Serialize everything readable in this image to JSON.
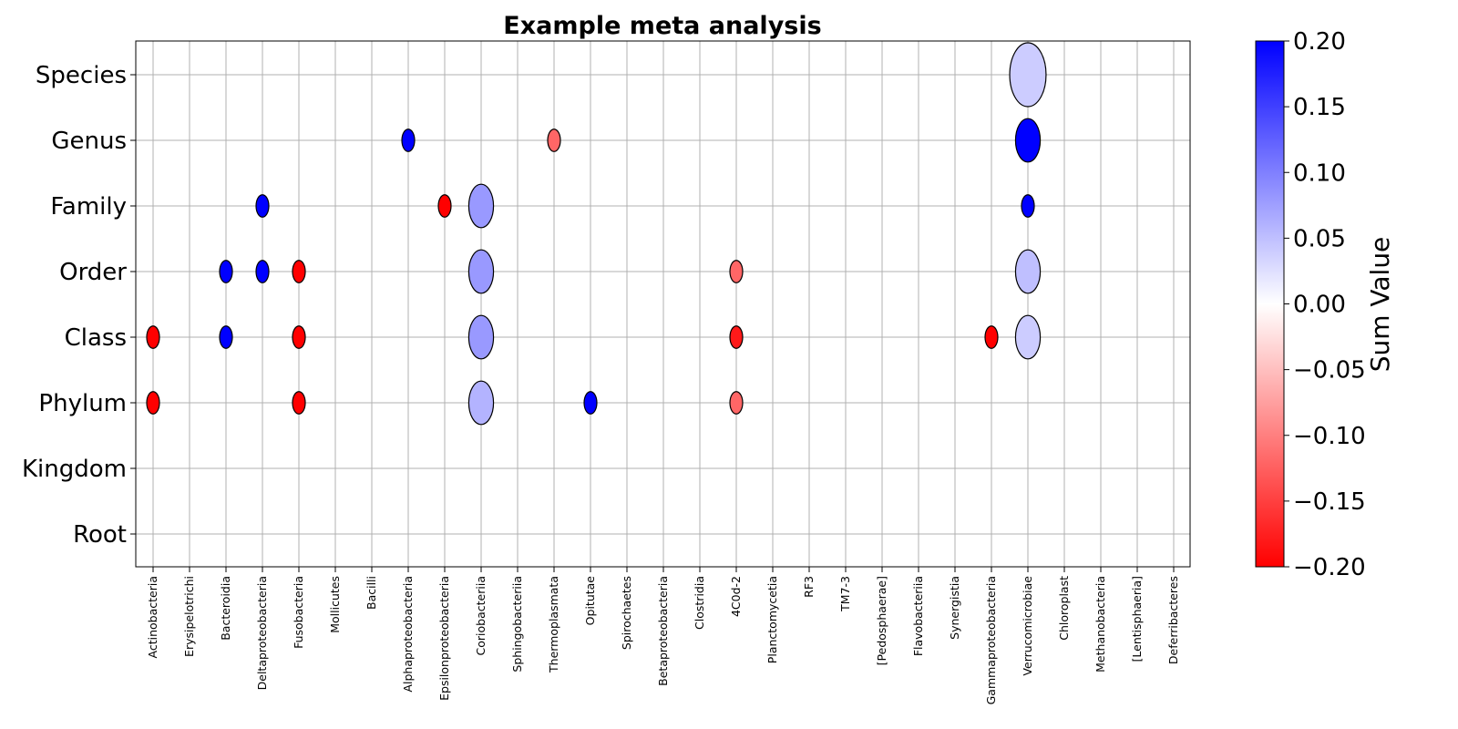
{
  "chart_data": {
    "type": "scatter",
    "title": "Example meta analysis",
    "x_categories": [
      "Actinobacteria",
      "Erysipelotrichi",
      "Bacteroidia",
      "Deltaproteobacteria",
      "Fusobacteria",
      "Mollicutes",
      "Bacilli",
      "Alphaproteobacteria",
      "Epsilonproteobacteria",
      "Coriobacteriia",
      "Sphingobacteriia",
      "Thermoplasmata",
      "Opitutae",
      "Spirochaetes",
      "Betaproteobacteria",
      "Clostridia",
      "4C0d-2",
      "Planctomycetia",
      "RF3",
      "TM7-3",
      "[Pedosphaerae]",
      "Flavobacteriia",
      "Synergistia",
      "Gammaproteobacteria",
      "Verrucomicrobiae",
      "Chloroplast",
      "Methanobacteria",
      "[Lentisphaeria]",
      "Deferribacteres"
    ],
    "y_categories": [
      "Root",
      "Kingdom",
      "Phylum",
      "Class",
      "Order",
      "Family",
      "Genus",
      "Species"
    ],
    "grid": true,
    "colorbar": {
      "label": "Sum Value",
      "range": [
        -0.2,
        0.2
      ],
      "ticks": [
        "0.20",
        "0.15",
        "0.10",
        "0.05",
        "0.00",
        "−0.05",
        "−0.10",
        "−0.15",
        "−0.20"
      ],
      "colormap": "bwr_reversed",
      "low_color": "#ff0000",
      "mid_color": "#ffffff",
      "high_color": "#0000ff"
    },
    "points": [
      {
        "x": "Verrucomicrobiae",
        "y": "Species",
        "value": 0.04,
        "size": 1.0
      },
      {
        "x": "Alphaproteobacteria",
        "y": "Genus",
        "value": 0.2,
        "size": 0.35
      },
      {
        "x": "Thermoplasmata",
        "y": "Genus",
        "value": -0.12,
        "size": 0.35
      },
      {
        "x": "Verrucomicrobiae",
        "y": "Genus",
        "value": 0.2,
        "size": 0.68
      },
      {
        "x": "Deltaproteobacteria",
        "y": "Family",
        "value": 0.2,
        "size": 0.35
      },
      {
        "x": "Epsilonproteobacteria",
        "y": "Family",
        "value": -0.2,
        "size": 0.35
      },
      {
        "x": "Coriobacteriia",
        "y": "Family",
        "value": 0.08,
        "size": 0.68
      },
      {
        "x": "Verrucomicrobiae",
        "y": "Family",
        "value": 0.2,
        "size": 0.35
      },
      {
        "x": "Bacteroidia",
        "y": "Order",
        "value": 0.2,
        "size": 0.35
      },
      {
        "x": "Deltaproteobacteria",
        "y": "Order",
        "value": 0.2,
        "size": 0.35
      },
      {
        "x": "Fusobacteria",
        "y": "Order",
        "value": -0.2,
        "size": 0.35
      },
      {
        "x": "Coriobacteriia",
        "y": "Order",
        "value": 0.08,
        "size": 0.68
      },
      {
        "x": "4C0d-2",
        "y": "Order",
        "value": -0.12,
        "size": 0.35
      },
      {
        "x": "Verrucomicrobiae",
        "y": "Order",
        "value": 0.05,
        "size": 0.68
      },
      {
        "x": "Actinobacteria",
        "y": "Class",
        "value": -0.2,
        "size": 0.35
      },
      {
        "x": "Bacteroidia",
        "y": "Class",
        "value": 0.2,
        "size": 0.35
      },
      {
        "x": "Fusobacteria",
        "y": "Class",
        "value": -0.2,
        "size": 0.35
      },
      {
        "x": "Coriobacteriia",
        "y": "Class",
        "value": 0.08,
        "size": 0.68
      },
      {
        "x": "4C0d-2",
        "y": "Class",
        "value": -0.18,
        "size": 0.35
      },
      {
        "x": "Gammaproteobacteria",
        "y": "Class",
        "value": -0.2,
        "size": 0.35
      },
      {
        "x": "Verrucomicrobiae",
        "y": "Class",
        "value": 0.04,
        "size": 0.68
      },
      {
        "x": "Actinobacteria",
        "y": "Phylum",
        "value": -0.2,
        "size": 0.35
      },
      {
        "x": "Fusobacteria",
        "y": "Phylum",
        "value": -0.2,
        "size": 0.35
      },
      {
        "x": "Coriobacteriia",
        "y": "Phylum",
        "value": 0.06,
        "size": 0.68
      },
      {
        "x": "Opitutae",
        "y": "Phylum",
        "value": 0.2,
        "size": 0.35
      },
      {
        "x": "4C0d-2",
        "y": "Phylum",
        "value": -0.12,
        "size": 0.35
      }
    ]
  }
}
